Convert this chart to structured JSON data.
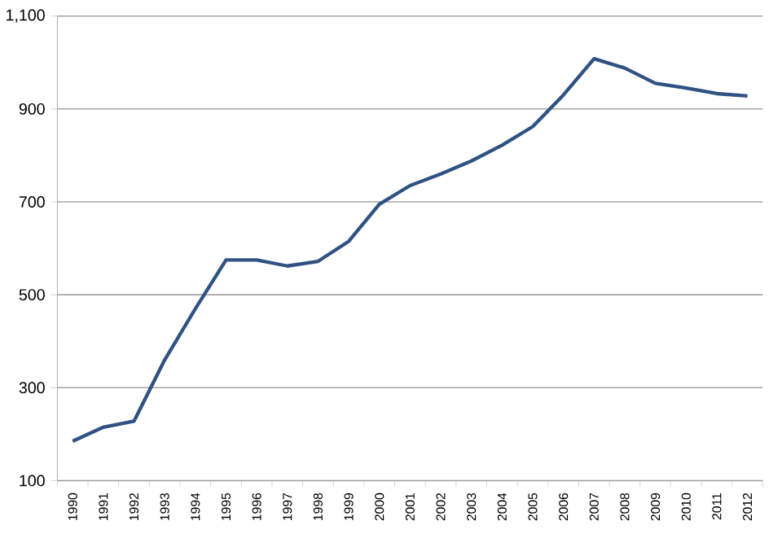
{
  "chart_data": {
    "type": "line",
    "categories": [
      "1990",
      "1991",
      "1992",
      "1993",
      "1994",
      "1995",
      "1996",
      "1997",
      "1998",
      "1999",
      "2000",
      "2001",
      "2002",
      "2003",
      "2004",
      "2005",
      "2006",
      "2007",
      "2008",
      "2009",
      "2010",
      "2011",
      "2012"
    ],
    "series": [
      {
        "color": "#2f5283",
        "values": [
          185,
          215,
          228,
          360,
          470,
          575,
          575,
          562,
          572,
          615,
          695,
          735,
          760,
          788,
          822,
          862,
          930,
          1008,
          988,
          955,
          945,
          933,
          928
        ]
      }
    ],
    "ylim": [
      100,
      1100
    ],
    "yticks": [
      100,
      300,
      500,
      700,
      900,
      {
        "value": 1100,
        "label": "1,100"
      }
    ],
    "grid": "y",
    "legend": false,
    "marker": "none",
    "line_style": "solid"
  }
}
